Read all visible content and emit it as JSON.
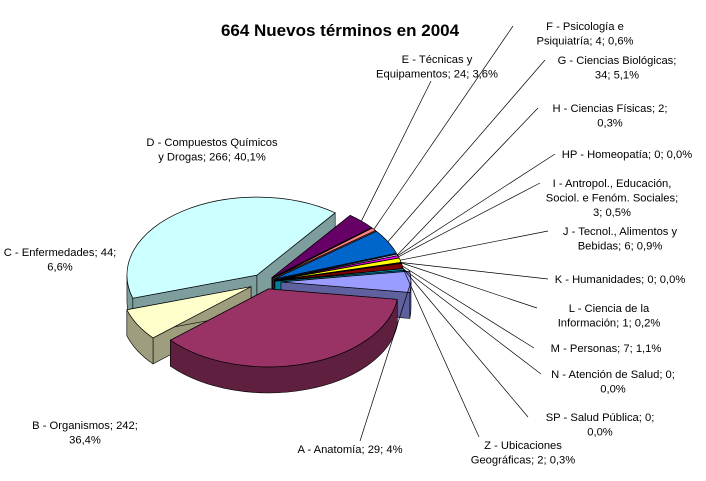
{
  "chart_data": {
    "type": "pie",
    "title": "664 Nuevos términos en 2004",
    "total": 664,
    "slices": [
      {
        "code": "A",
        "label_lines": [
          "A - Anatomía; 29; 4%"
        ],
        "value": 29,
        "color": "#9a9cff"
      },
      {
        "code": "B",
        "label_lines": [
          "B - Organismos; 242;",
          "36,4%"
        ],
        "value": 242,
        "color": "#993366"
      },
      {
        "code": "C",
        "label_lines": [
          "C - Enfermedades; 44;",
          "6,6%"
        ],
        "value": 44,
        "color": "#ffffcc"
      },
      {
        "code": "D",
        "label_lines": [
          "D - Compuestos Químicos",
          "y Drogas; 266; 40,1%"
        ],
        "value": 266,
        "color": "#ccffff"
      },
      {
        "code": "E",
        "label_lines": [
          "E - Técnicas y",
          "Equipamentos; 24; 3,6%"
        ],
        "value": 24,
        "color": "#660066"
      },
      {
        "code": "F",
        "label_lines": [
          "F - Psicología e",
          "Psiquiatría; 4; 0,6%"
        ],
        "value": 4,
        "color": "#ff8080"
      },
      {
        "code": "G",
        "label_lines": [
          "G - Ciencias Biológicas;",
          "34; 5,1%"
        ],
        "value": 34,
        "color": "#0066cc"
      },
      {
        "code": "H",
        "label_lines": [
          "H - Ciencias Físicas; 2;",
          "0,3%"
        ],
        "value": 2,
        "color": "#ccccff"
      },
      {
        "code": "HP",
        "label_lines": [
          "HP - Homeopatía; 0; 0,0%"
        ],
        "value": 0,
        "color": "#000080"
      },
      {
        "code": "I",
        "label_lines": [
          "I - Antropol., Educación,",
          "Sociol. e Fenóm. Sociales;",
          "3; 0,5%"
        ],
        "value": 3,
        "color": "#ff00ff"
      },
      {
        "code": "J",
        "label_lines": [
          "J - Tecnol., Alimentos y",
          "Bebidas; 6; 0,9%"
        ],
        "value": 6,
        "color": "#ffff00"
      },
      {
        "code": "K",
        "label_lines": [
          "K - Humanidades; 0; 0,0%"
        ],
        "value": 0,
        "color": "#00ffff"
      },
      {
        "code": "L",
        "label_lines": [
          "L - Ciencia de la",
          "Información; 1; 0,2%"
        ],
        "value": 1,
        "color": "#800080"
      },
      {
        "code": "M",
        "label_lines": [
          "M - Personas; 7; 1,1%"
        ],
        "value": 7,
        "color": "#800000"
      },
      {
        "code": "N",
        "label_lines": [
          "N - Atención de Salud; 0;",
          "0,0%"
        ],
        "value": 0,
        "color": "#008080"
      },
      {
        "code": "SP",
        "label_lines": [
          "SP - Salud Pública; 0;",
          "0,0%"
        ],
        "value": 0,
        "color": "#0000ff"
      },
      {
        "code": "Z",
        "label_lines": [
          "Z - Ubicaciones",
          "Geográficas; 2; 0,3%"
        ],
        "value": 2,
        "color": "#00ccff"
      }
    ]
  }
}
